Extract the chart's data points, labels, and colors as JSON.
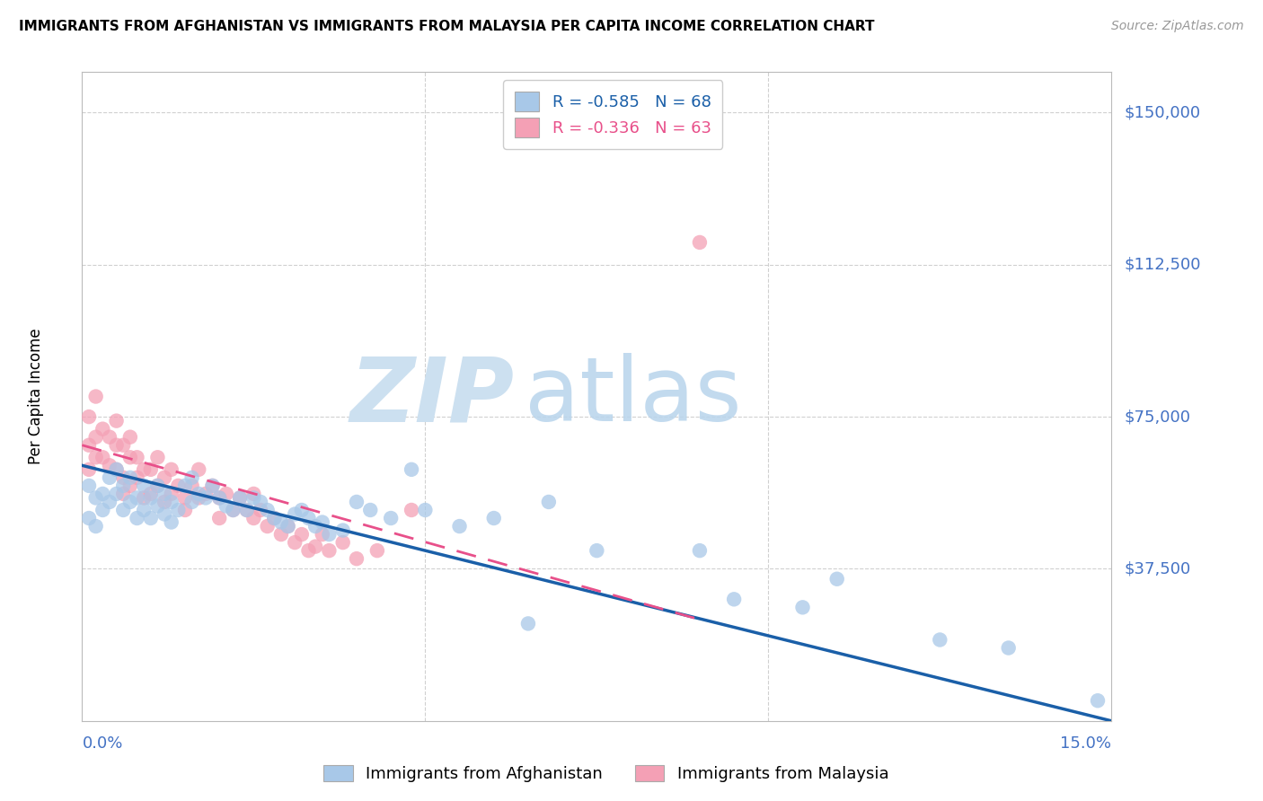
{
  "title": "IMMIGRANTS FROM AFGHANISTAN VS IMMIGRANTS FROM MALAYSIA PER CAPITA INCOME CORRELATION CHART",
  "source": "Source: ZipAtlas.com",
  "ylabel": "Per Capita Income",
  "xlim": [
    0.0,
    0.15
  ],
  "ylim": [
    0,
    160000
  ],
  "afghanistan_color": "#a8c8e8",
  "malaysia_color": "#f4a0b5",
  "trend_afghanistan_color": "#1a5fa8",
  "trend_malaysia_color": "#e8508a",
  "axis_label_color": "#4472c4",
  "watermark_zip_color": "#cce0f0",
  "watermark_atlas_color": "#b8d4ec",
  "grid_color": "#d0d0d0",
  "background_color": "#ffffff",
  "legend_R_afg": "-0.585",
  "legend_N_afg": "68",
  "legend_R_mal": "-0.336",
  "legend_N_mal": "63",
  "title_fontsize": 11,
  "ytick_vals": [
    37500,
    75000,
    112500,
    150000
  ],
  "ytick_labels": [
    "$37,500",
    "$75,000",
    "$112,500",
    "$150,000"
  ],
  "afghanistan_scatter_x": [
    0.001,
    0.001,
    0.002,
    0.002,
    0.003,
    0.003,
    0.004,
    0.004,
    0.005,
    0.005,
    0.006,
    0.006,
    0.007,
    0.007,
    0.008,
    0.008,
    0.009,
    0.009,
    0.01,
    0.01,
    0.011,
    0.011,
    0.012,
    0.012,
    0.013,
    0.013,
    0.014,
    0.015,
    0.016,
    0.016,
    0.017,
    0.018,
    0.019,
    0.02,
    0.021,
    0.022,
    0.023,
    0.024,
    0.025,
    0.026,
    0.027,
    0.028,
    0.029,
    0.03,
    0.031,
    0.032,
    0.033,
    0.034,
    0.035,
    0.036,
    0.038,
    0.04,
    0.042,
    0.045,
    0.048,
    0.05,
    0.055,
    0.06,
    0.065,
    0.068,
    0.075,
    0.09,
    0.095,
    0.105,
    0.11,
    0.125,
    0.135,
    0.148
  ],
  "afghanistan_scatter_y": [
    58000,
    50000,
    55000,
    48000,
    56000,
    52000,
    60000,
    54000,
    62000,
    56000,
    58000,
    52000,
    60000,
    54000,
    55000,
    50000,
    58000,
    52000,
    55000,
    50000,
    58000,
    53000,
    56000,
    51000,
    54000,
    49000,
    52000,
    58000,
    60000,
    54000,
    56000,
    55000,
    58000,
    55000,
    53000,
    52000,
    55000,
    52000,
    55000,
    54000,
    52000,
    50000,
    49000,
    48000,
    51000,
    52000,
    50000,
    48000,
    49000,
    46000,
    47000,
    54000,
    52000,
    50000,
    62000,
    52000,
    48000,
    50000,
    24000,
    54000,
    42000,
    42000,
    30000,
    28000,
    35000,
    20000,
    18000,
    5000
  ],
  "malaysia_scatter_x": [
    0.001,
    0.001,
    0.001,
    0.002,
    0.002,
    0.002,
    0.003,
    0.003,
    0.004,
    0.004,
    0.005,
    0.005,
    0.005,
    0.006,
    0.006,
    0.006,
    0.007,
    0.007,
    0.007,
    0.008,
    0.008,
    0.009,
    0.009,
    0.01,
    0.01,
    0.011,
    0.011,
    0.012,
    0.012,
    0.013,
    0.013,
    0.014,
    0.015,
    0.015,
    0.016,
    0.017,
    0.017,
    0.018,
    0.019,
    0.02,
    0.02,
    0.021,
    0.022,
    0.023,
    0.024,
    0.025,
    0.025,
    0.026,
    0.027,
    0.028,
    0.029,
    0.03,
    0.031,
    0.032,
    0.033,
    0.034,
    0.035,
    0.036,
    0.038,
    0.04,
    0.043,
    0.048,
    0.09
  ],
  "malaysia_scatter_y": [
    68000,
    62000,
    75000,
    70000,
    65000,
    80000,
    72000,
    65000,
    70000,
    63000,
    68000,
    74000,
    62000,
    68000,
    60000,
    56000,
    65000,
    70000,
    58000,
    65000,
    60000,
    62000,
    55000,
    62000,
    56000,
    65000,
    58000,
    60000,
    54000,
    62000,
    56000,
    58000,
    55000,
    52000,
    58000,
    55000,
    62000,
    56000,
    58000,
    55000,
    50000,
    56000,
    52000,
    55000,
    52000,
    56000,
    50000,
    52000,
    48000,
    50000,
    46000,
    48000,
    44000,
    46000,
    42000,
    43000,
    46000,
    42000,
    44000,
    40000,
    42000,
    52000,
    118000
  ],
  "trend_afg_x0": 0.0,
  "trend_afg_y0": 63000,
  "trend_afg_x1": 0.15,
  "trend_afg_y1": 0,
  "trend_mal_x0": 0.0,
  "trend_mal_y0": 68000,
  "trend_mal_x1": 0.09,
  "trend_mal_y1": 25000
}
